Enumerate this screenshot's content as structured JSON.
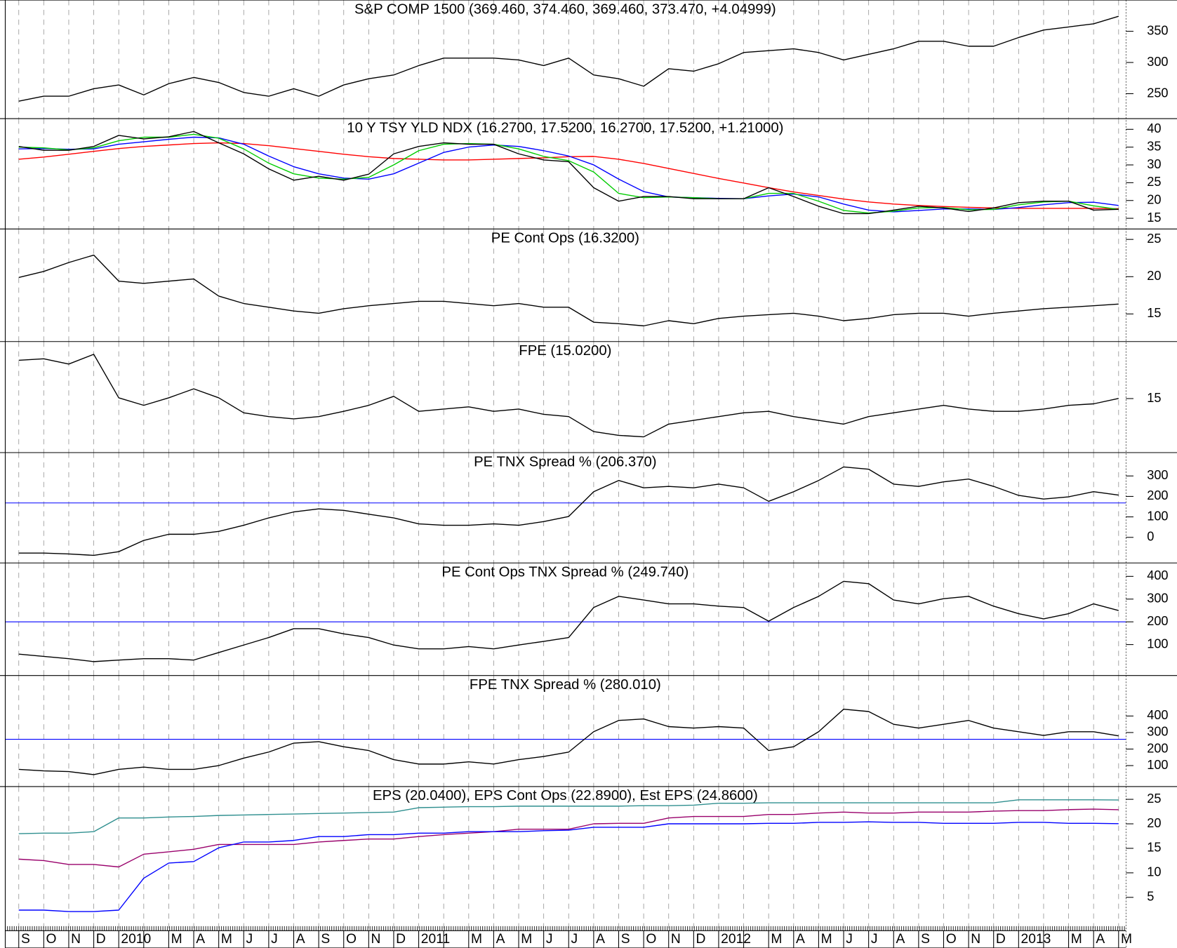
{
  "chart_data": [
    {
      "type": "line",
      "title": "S&P COMP 1500 (369.460, 374.460, 369.460, 373.470, +4.04999)",
      "ylim": [
        210,
        400
      ],
      "yticks": [
        250,
        300,
        350
      ],
      "series": [
        {
          "color": "#000000",
          "values": [
            238,
            246,
            246,
            258,
            264,
            248,
            266,
            276,
            268,
            252,
            246,
            258,
            246,
            264,
            274,
            280,
            295,
            307,
            307,
            307,
            304,
            295,
            307,
            280,
            274,
            262,
            290,
            286,
            298,
            316,
            319,
            322,
            316,
            304,
            313,
            322,
            334,
            334,
            326,
            326,
            340,
            352,
            357,
            362,
            374
          ]
        }
      ]
    },
    {
      "type": "line",
      "title": "10 Y TSY YLD NDX (16.2700, 17.5200, 16.2700, 17.5200, +1.21000)",
      "ylim": [
        12,
        43
      ],
      "yticks": [
        15,
        20,
        25,
        30,
        35,
        40
      ],
      "series": [
        {
          "color": "#ff0000",
          "values": [
            31.6,
            32.2,
            33.0,
            33.8,
            34.6,
            35.2,
            35.6,
            36.0,
            36.2,
            36.0,
            35.4,
            34.6,
            33.8,
            33.0,
            32.3,
            31.8,
            31.6,
            31.4,
            31.4,
            31.6,
            31.8,
            32.0,
            32.3,
            32.4,
            31.6,
            30.4,
            29.0,
            27.6,
            26.2,
            24.9,
            23.6,
            22.4,
            21.4,
            20.4,
            19.6,
            19.0,
            18.6,
            18.3,
            18.1,
            17.9,
            17.8,
            17.8,
            17.8,
            17.8,
            17.7
          ]
        },
        {
          "color": "#0000ff",
          "values": [
            34.5,
            34.6,
            34.4,
            34.5,
            35.8,
            36.5,
            37.2,
            37.8,
            37.6,
            35.8,
            32.5,
            29.5,
            27.5,
            26.3,
            26.0,
            27.5,
            30.5,
            33.5,
            35.0,
            35.6,
            35.2,
            34.0,
            32.5,
            30.0,
            26.0,
            22.5,
            21.0,
            20.8,
            20.6,
            20.5,
            21.3,
            21.8,
            21.0,
            19.0,
            17.3,
            16.8,
            17.2,
            17.6,
            17.6,
            17.5,
            18.0,
            18.8,
            19.4,
            19.5,
            18.6
          ]
        },
        {
          "color": "#00cc00",
          "values": [
            35.0,
            34.8,
            34.2,
            34.8,
            36.8,
            37.8,
            37.8,
            38.6,
            37.5,
            34.5,
            30.5,
            27.5,
            26.3,
            26.0,
            26.5,
            30.0,
            34.0,
            35.8,
            36.0,
            35.8,
            34.5,
            32.4,
            31.2,
            28.0,
            22.0,
            20.8,
            21.0,
            20.8,
            20.5,
            20.5,
            22.0,
            22.0,
            19.8,
            17.2,
            16.5,
            17.0,
            17.9,
            18.0,
            17.4,
            17.5,
            18.8,
            19.6,
            19.8,
            18.5,
            17.5
          ]
        },
        {
          "color": "#000000",
          "values": [
            35.2,
            34.1,
            34.1,
            35.2,
            38.3,
            37.3,
            37.9,
            39.4,
            36.2,
            33.1,
            28.9,
            25.7,
            26.8,
            25.7,
            27.4,
            33.1,
            35.2,
            36.2,
            35.8,
            35.8,
            33.1,
            31.4,
            30.9,
            23.6,
            19.8,
            21.1,
            21.1,
            20.5,
            20.5,
            20.5,
            23.6,
            21.1,
            18.4,
            16.3,
            16.3,
            17.3,
            18.4,
            17.9,
            16.9,
            17.9,
            19.4,
            19.8,
            19.8,
            17.3,
            17.52
          ]
        }
      ]
    },
    {
      "type": "line",
      "title": "PE Cont Ops (16.3200)",
      "ylim": [
        11.3,
        26.4
      ],
      "yticks": [
        15,
        20,
        25
      ],
      "series": [
        {
          "color": "#000000",
          "values": [
            19.9,
            20.7,
            21.9,
            22.9,
            19.4,
            19.1,
            19.4,
            19.7,
            17.4,
            16.4,
            15.9,
            15.4,
            15.1,
            15.7,
            16.1,
            16.4,
            16.7,
            16.7,
            16.4,
            16.1,
            16.4,
            15.9,
            15.9,
            13.9,
            13.7,
            13.4,
            14.1,
            13.7,
            14.4,
            14.7,
            14.9,
            15.1,
            14.7,
            14.1,
            14.4,
            14.9,
            15.1,
            15.1,
            14.7,
            15.1,
            15.4,
            15.7,
            15.9,
            16.1,
            16.32
          ]
        }
      ]
    },
    {
      "type": "line",
      "title": "FPE (15.0200)",
      "ylim": [
        7.8,
        22.6
      ],
      "yticks": [
        15
      ],
      "series": [
        {
          "color": "#000000",
          "values": [
            20.1,
            20.3,
            19.6,
            20.9,
            15.1,
            14.1,
            15.1,
            16.3,
            15.1,
            13.1,
            12.6,
            12.3,
            12.6,
            13.3,
            14.1,
            15.3,
            13.3,
            13.6,
            13.9,
            13.3,
            13.6,
            12.9,
            12.6,
            10.6,
            10.1,
            9.9,
            11.6,
            12.1,
            12.6,
            13.1,
            13.3,
            12.6,
            12.1,
            11.6,
            12.6,
            13.1,
            13.6,
            14.1,
            13.6,
            13.3,
            13.3,
            13.6,
            14.1,
            14.3,
            15.02
          ]
        }
      ]
    },
    {
      "type": "line",
      "title": "PE TNX Spread % (206.370)",
      "ylim": [
        -125,
        414
      ],
      "yticks": [
        0,
        100,
        200,
        300
      ],
      "hline": 168,
      "hline_color": "#0000ff",
      "series": [
        {
          "color": "#000000",
          "values": [
            -77,
            -77,
            -81,
            -88,
            -70,
            -15,
            15,
            15,
            29,
            59,
            95,
            124,
            139,
            132,
            113,
            95,
            66,
            59,
            59,
            66,
            59,
            77,
            102,
            223,
            278,
            242,
            249,
            242,
            260,
            242,
            176,
            223,
            278,
            344,
            333,
            260,
            249,
            271,
            285,
            249,
            205,
            187,
            198,
            223,
            206.37
          ]
        }
      ]
    },
    {
      "type": "line",
      "title": "PE Cont Ops TNX Spread % (249.740)",
      "ylim": [
        -36,
        459
      ],
      "yticks": [
        100,
        200,
        300,
        400
      ],
      "hline": 200,
      "hline_color": "#0000ff",
      "series": [
        {
          "color": "#000000",
          "values": [
            58,
            48,
            38,
            25,
            32,
            38,
            38,
            32,
            65,
            98,
            131,
            170,
            170,
            147,
            131,
            98,
            81,
            81,
            91,
            81,
            98,
            114,
            131,
            263,
            312,
            296,
            279,
            279,
            269,
            263,
            203,
            263,
            312,
            378,
            368,
            296,
            279,
            302,
            312,
            269,
            236,
            213,
            236,
            279,
            249.74
          ]
        }
      ]
    },
    {
      "type": "line",
      "title": "FPE TNX Spread % (280.010)",
      "ylim": [
        -27,
        645
      ],
      "yticks": [
        100,
        200,
        300,
        400
      ],
      "hline": 259,
      "hline_color": "#0000ff",
      "series": [
        {
          "color": "#000000",
          "values": [
            77,
            68,
            64,
            45,
            77,
            91,
            77,
            77,
            100,
            145,
            182,
            236,
            245,
            214,
            191,
            136,
            109,
            109,
            123,
            109,
            136,
            155,
            182,
            305,
            373,
            382,
            336,
            327,
            336,
            327,
            191,
            214,
            305,
            441,
            427,
            350,
            327,
            350,
            373,
            327,
            305,
            282,
            305,
            305,
            280.01
          ]
        }
      ]
    },
    {
      "type": "line",
      "title": "EPS (20.0400), EPS Cont Ops (22.8900), Est EPS (24.8600)",
      "ylim": [
        -1.8,
        27.6
      ],
      "yticks": [
        5,
        10,
        15,
        20,
        25
      ],
      "grid": "x",
      "categories": [
        "S",
        "O",
        "N",
        "D",
        "2010",
        null,
        "M",
        "A",
        "M",
        "J",
        "J",
        "A",
        "S",
        "O",
        "N",
        "D",
        "2011",
        null,
        "M",
        "A",
        "M",
        "J",
        "J",
        "A",
        "S",
        "O",
        "N",
        "D",
        "2012",
        null,
        "M",
        "A",
        "M",
        "J",
        "J",
        "A",
        "S",
        "O",
        "N",
        "D",
        "2013",
        null,
        "M",
        "A",
        "M"
      ],
      "series": [
        {
          "color": "#2f8f8f",
          "values": [
            18.0,
            18.1,
            18.1,
            18.4,
            21.2,
            21.2,
            21.4,
            21.5,
            21.7,
            21.8,
            21.9,
            22.0,
            22.1,
            22.2,
            22.3,
            22.4,
            23.3,
            23.4,
            23.5,
            23.5,
            23.6,
            23.6,
            23.6,
            23.6,
            23.6,
            23.7,
            23.7,
            23.8,
            24.2,
            24.2,
            24.3,
            24.3,
            24.3,
            24.3,
            24.3,
            24.3,
            24.3,
            24.3,
            24.3,
            24.3,
            24.9,
            24.9,
            24.9,
            24.9,
            24.86
          ]
        },
        {
          "color": "#99006b",
          "values": [
            12.8,
            12.5,
            11.7,
            11.7,
            11.2,
            13.8,
            14.3,
            14.8,
            15.8,
            15.8,
            15.8,
            15.8,
            16.3,
            16.6,
            16.9,
            16.9,
            17.4,
            17.8,
            18.1,
            18.4,
            18.9,
            18.9,
            18.9,
            20.0,
            20.1,
            20.1,
            21.2,
            21.5,
            21.5,
            21.5,
            21.9,
            21.9,
            22.2,
            22.4,
            22.2,
            22.2,
            22.4,
            22.4,
            22.4,
            22.6,
            22.7,
            22.7,
            22.9,
            23.0,
            22.89
          ]
        },
        {
          "color": "#0000ff",
          "values": [
            2.4,
            2.4,
            2.1,
            2.1,
            2.4,
            8.9,
            12.0,
            12.3,
            15.1,
            16.3,
            16.3,
            16.6,
            17.4,
            17.4,
            17.8,
            17.8,
            18.1,
            18.1,
            18.4,
            18.4,
            18.4,
            18.6,
            18.7,
            19.3,
            19.3,
            19.3,
            20.0,
            20.0,
            20.0,
            20.0,
            20.1,
            20.1,
            20.3,
            20.3,
            20.4,
            20.3,
            20.3,
            20.1,
            20.1,
            20.1,
            20.3,
            20.3,
            20.1,
            20.1,
            20.04
          ]
        }
      ]
    }
  ]
}
